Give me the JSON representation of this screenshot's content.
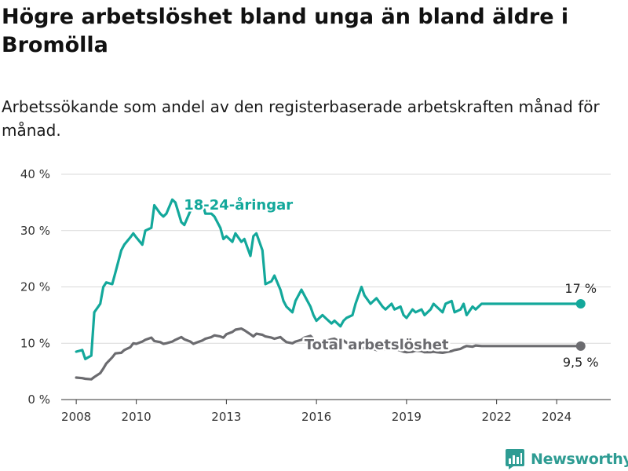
{
  "title": "Högre arbetslöshet bland unga än bland äldre i Bromölla",
  "subtitle": "Arbetssökande som andel av den registerbaserade arbetskraften månad för månad.",
  "brand": {
    "name": "Newsworthy",
    "color": "#2e9c93"
  },
  "colors": {
    "youth": "#13a89b",
    "total": "#6b6b6f",
    "grid": "#d9d9d9",
    "axis": "#333333"
  },
  "chart_data": {
    "type": "line",
    "xlim": [
      2007.5,
      2025.8
    ],
    "ylim": [
      0,
      40
    ],
    "yticks": [
      0,
      10,
      20,
      30,
      40
    ],
    "ytick_labels": [
      "0 %",
      "10 %",
      "20 %",
      "30 %",
      "40 %"
    ],
    "xticks": [
      2008,
      2010,
      2013,
      2016,
      2019,
      2022,
      2024
    ],
    "xtick_labels": [
      "2008",
      "2010",
      "2013",
      "2016",
      "2019",
      "2022",
      "2024"
    ],
    "grid": true,
    "series": [
      {
        "name": "18-24-åringar",
        "label": "18-24-åringar",
        "end_label": "17 %",
        "end_value": 17,
        "x": [
          2008.0,
          2008.2,
          2008.3,
          2008.5,
          2008.6,
          2008.8,
          2008.9,
          2009.0,
          2009.2,
          2009.3,
          2009.5,
          2009.6,
          2009.8,
          2009.9,
          2010.0,
          2010.2,
          2010.3,
          2010.5,
          2010.6,
          2010.8,
          2010.9,
          2011.0,
          2011.2,
          2011.3,
          2011.5,
          2011.6,
          2011.8,
          2011.9,
          2012.0,
          2012.2,
          2012.3,
          2012.5,
          2012.6,
          2012.8,
          2012.9,
          2013.0,
          2013.2,
          2013.3,
          2013.5,
          2013.6,
          2013.8,
          2013.9,
          2014.0,
          2014.2,
          2014.3,
          2014.5,
          2014.6,
          2014.8,
          2014.9,
          2015.0,
          2015.2,
          2015.3,
          2015.5,
          2015.6,
          2015.8,
          2015.9,
          2016.0,
          2016.2,
          2016.3,
          2016.5,
          2016.6,
          2016.8,
          2016.9,
          2017.0,
          2017.2,
          2017.3,
          2017.5,
          2017.6,
          2017.8,
          2017.9,
          2018.0,
          2018.2,
          2018.3,
          2018.5,
          2018.6,
          2018.8,
          2018.9,
          2019.0,
          2019.2,
          2019.3,
          2019.5,
          2019.6,
          2019.8,
          2019.9,
          2020.0,
          2020.2,
          2020.3,
          2020.5,
          2020.6,
          2020.8,
          2020.9,
          2021.0,
          2021.2,
          2021.3,
          2021.5,
          2021.6,
          2021.8,
          2021.9,
          2022.0,
          2022.2,
          2022.3,
          2022.5,
          2022.6,
          2022.8,
          2022.9,
          2023.0,
          2023.2,
          2023.3,
          2023.5,
          2023.6,
          2023.8,
          2023.9,
          2024.0,
          2024.2,
          2024.3,
          2024.5,
          2024.6,
          2024.8
        ],
        "values": [
          8.5,
          8.8,
          7.2,
          7.8,
          15.5,
          17.0,
          20.0,
          20.8,
          20.5,
          22.5,
          26.5,
          27.5,
          28.8,
          29.5,
          28.8,
          27.5,
          30.0,
          30.5,
          34.5,
          33.0,
          32.5,
          33.0,
          35.5,
          35.0,
          31.5,
          31.0,
          33.5,
          34.0,
          35.5,
          35.0,
          33.0,
          33.0,
          32.5,
          30.5,
          28.5,
          29.0,
          28.0,
          29.5,
          28.0,
          28.5,
          25.5,
          29.0,
          29.5,
          26.5,
          20.5,
          21.0,
          22.0,
          19.5,
          17.5,
          16.5,
          15.5,
          17.5,
          19.5,
          18.5,
          16.5,
          15.0,
          14.0,
          15.0,
          14.5,
          13.5,
          14.0,
          13.0,
          14.0,
          14.5,
          15.0,
          17.0,
          20.0,
          18.5,
          17.0,
          17.5,
          18.0,
          16.5,
          16.0,
          17.0,
          16.0,
          16.5,
          15.0,
          14.5,
          16.0,
          15.5,
          16.0,
          15.0,
          16.0,
          17.0,
          16.5,
          15.5,
          17.0,
          17.5,
          15.5,
          16.0,
          17.0,
          15.0,
          16.5,
          16.0,
          17.0,
          17.0,
          17.0,
          17.0,
          17.0,
          17.0,
          17.0,
          17.0,
          17.0,
          17.0,
          17.0,
          17.0,
          17.0,
          17.0,
          17.0,
          17.0,
          17.0,
          17.0,
          17.0,
          17.0,
          17.0,
          17.0,
          17.0,
          17.0
        ]
      },
      {
        "name": "Total arbetslöshet",
        "label": "Total arbetslöshet",
        "end_label": "9,5 %",
        "end_value": 9.5,
        "x": [
          2008.0,
          2008.2,
          2008.3,
          2008.5,
          2008.6,
          2008.8,
          2008.9,
          2009.0,
          2009.2,
          2009.3,
          2009.5,
          2009.6,
          2009.8,
          2009.9,
          2010.0,
          2010.2,
          2010.3,
          2010.5,
          2010.6,
          2010.8,
          2010.9,
          2011.0,
          2011.2,
          2011.3,
          2011.5,
          2011.6,
          2011.8,
          2011.9,
          2012.0,
          2012.2,
          2012.3,
          2012.5,
          2012.6,
          2012.8,
          2012.9,
          2013.0,
          2013.2,
          2013.3,
          2013.5,
          2013.6,
          2013.8,
          2013.9,
          2014.0,
          2014.2,
          2014.3,
          2014.5,
          2014.6,
          2014.8,
          2014.9,
          2015.0,
          2015.2,
          2015.3,
          2015.5,
          2015.6,
          2015.8,
          2015.9,
          2016.0,
          2016.2,
          2016.3,
          2016.5,
          2016.6,
          2016.8,
          2016.9,
          2017.0,
          2017.2,
          2017.3,
          2017.5,
          2017.6,
          2017.8,
          2017.9,
          2018.0,
          2018.2,
          2018.3,
          2018.5,
          2018.6,
          2018.8,
          2018.9,
          2019.0,
          2019.2,
          2019.3,
          2019.5,
          2019.6,
          2019.8,
          2019.9,
          2020.0,
          2020.2,
          2020.3,
          2020.5,
          2020.6,
          2020.8,
          2020.9,
          2021.0,
          2021.2,
          2021.3,
          2021.5,
          2021.6,
          2021.8,
          2021.9,
          2022.0,
          2022.2,
          2022.3,
          2022.5,
          2022.6,
          2022.8,
          2022.9,
          2023.0,
          2023.2,
          2023.3,
          2023.5,
          2023.6,
          2023.8,
          2023.9,
          2024.0,
          2024.2,
          2024.3,
          2024.5,
          2024.6,
          2024.8
        ],
        "values": [
          3.9,
          3.8,
          3.7,
          3.6,
          4.0,
          4.7,
          5.5,
          6.4,
          7.5,
          8.2,
          8.3,
          8.8,
          9.3,
          10.0,
          9.9,
          10.3,
          10.6,
          11.0,
          10.4,
          10.2,
          9.9,
          10.0,
          10.3,
          10.6,
          11.1,
          10.7,
          10.3,
          9.9,
          10.1,
          10.5,
          10.8,
          11.1,
          11.4,
          11.2,
          11.0,
          11.6,
          12.0,
          12.4,
          12.6,
          12.3,
          11.6,
          11.2,
          11.7,
          11.5,
          11.2,
          11.0,
          10.8,
          11.1,
          10.6,
          10.2,
          10.0,
          10.3,
          10.6,
          11.0,
          11.3,
          10.8,
          10.3,
          9.9,
          10.4,
          10.7,
          10.8,
          10.2,
          10.5,
          10.1,
          9.9,
          9.6,
          9.3,
          9.0,
          9.2,
          9.0,
          8.8,
          8.9,
          9.0,
          9.1,
          9.0,
          8.7,
          8.5,
          8.4,
          8.5,
          8.7,
          8.6,
          8.4,
          8.4,
          8.5,
          8.4,
          8.3,
          8.4,
          8.6,
          8.8,
          9.0,
          9.3,
          9.5,
          9.4,
          9.6,
          9.5,
          9.5,
          9.5,
          9.5,
          9.5,
          9.5,
          9.5,
          9.5,
          9.5,
          9.5,
          9.5,
          9.5,
          9.5,
          9.5,
          9.5,
          9.5,
          9.5,
          9.5,
          9.5,
          9.5,
          9.5,
          9.5,
          9.5,
          9.5
        ]
      }
    ]
  }
}
